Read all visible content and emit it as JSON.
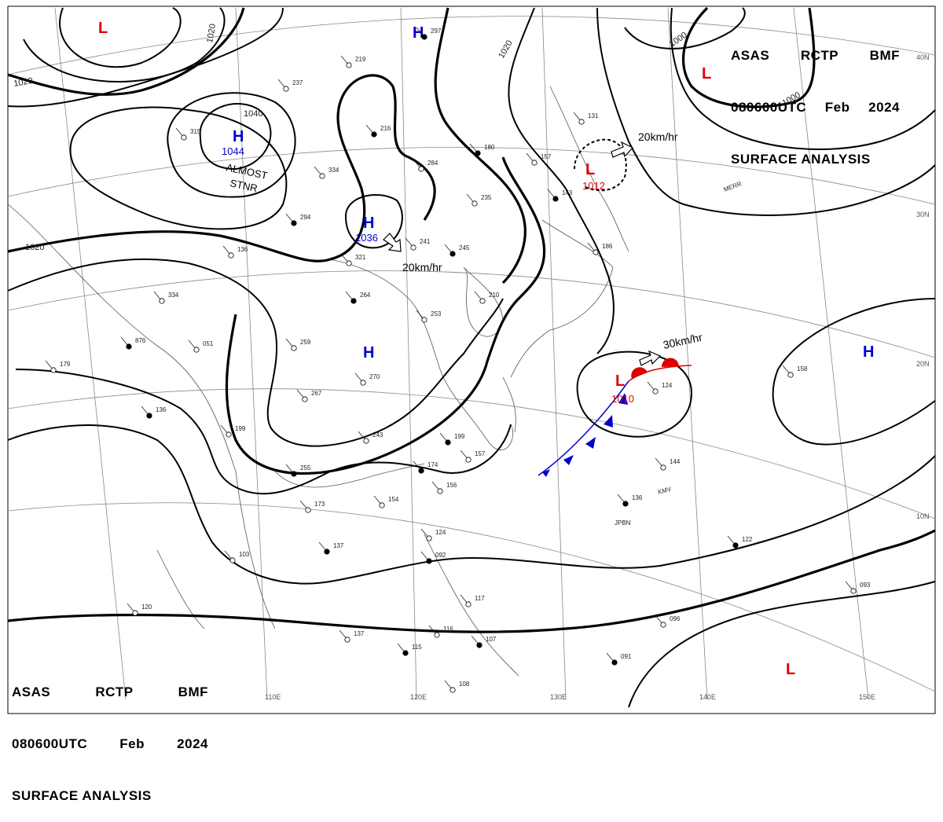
{
  "header": {
    "agency": "ASAS",
    "center": "RCTP",
    "office": "BMF",
    "time": "080600UTC",
    "month": "Feb",
    "year": "2024",
    "product": "SURFACE ANALYSIS"
  },
  "symbols": {
    "high": "H",
    "low": "L",
    "high_color": "#0000cc",
    "low_color": "#dd0000"
  },
  "pressure_centers": [
    {
      "type": "L",
      "value": ""
    },
    {
      "type": "H",
      "value": ""
    },
    {
      "type": "H",
      "value": "1044"
    },
    {
      "type": "H",
      "value": "1036"
    },
    {
      "type": "L",
      "value": ""
    },
    {
      "type": "L",
      "value": "1012"
    },
    {
      "type": "H",
      "value": ""
    },
    {
      "type": "L",
      "value": "1010"
    },
    {
      "type": "H",
      "value": ""
    },
    {
      "type": "L",
      "value": ""
    }
  ],
  "movements": [
    {
      "label": "20km/hr"
    },
    {
      "label": "20km/hr"
    },
    {
      "label": "30km/hr"
    }
  ],
  "annotations": {
    "stationary_1": "ALMOST",
    "stationary_2": "STNR"
  },
  "isobar_labels": [
    {
      "value": "1020"
    },
    {
      "value": "1020"
    },
    {
      "value": "1020"
    },
    {
      "value": "1040"
    },
    {
      "value": "1020"
    },
    {
      "value": "1000"
    },
    {
      "value": "1000"
    }
  ],
  "longitude_labels": [
    "110E",
    "120E",
    "130E",
    "140E",
    "150E"
  ],
  "latitude_labels": [
    "40N",
    "30N",
    "20N",
    "10N"
  ],
  "station_labels": [
    "MERR",
    "KMV",
    "JPBN"
  ],
  "stations": [
    "297",
    "219",
    "237",
    "216",
    "334",
    "284",
    "180",
    "157",
    "131",
    "294",
    "321",
    "241",
    "245",
    "235",
    "186",
    "264",
    "253",
    "210",
    "143",
    "259",
    "051",
    "876",
    "334",
    "179",
    "136",
    "270",
    "267",
    "255",
    "199",
    "243",
    "199",
    "157",
    "156",
    "174",
    "154",
    "173",
    "137",
    "103",
    "124",
    "092",
    "117",
    "116",
    "107",
    "108",
    "137",
    "115",
    "120",
    "144",
    "136",
    "124",
    "158",
    "122",
    "093",
    "096",
    "091",
    "315",
    "136"
  ],
  "colors": {
    "isobar": "#000000",
    "grid": "#888888",
    "coast": "#555555",
    "cold_front": "#0000cc",
    "warm_front": "#dd0000"
  }
}
